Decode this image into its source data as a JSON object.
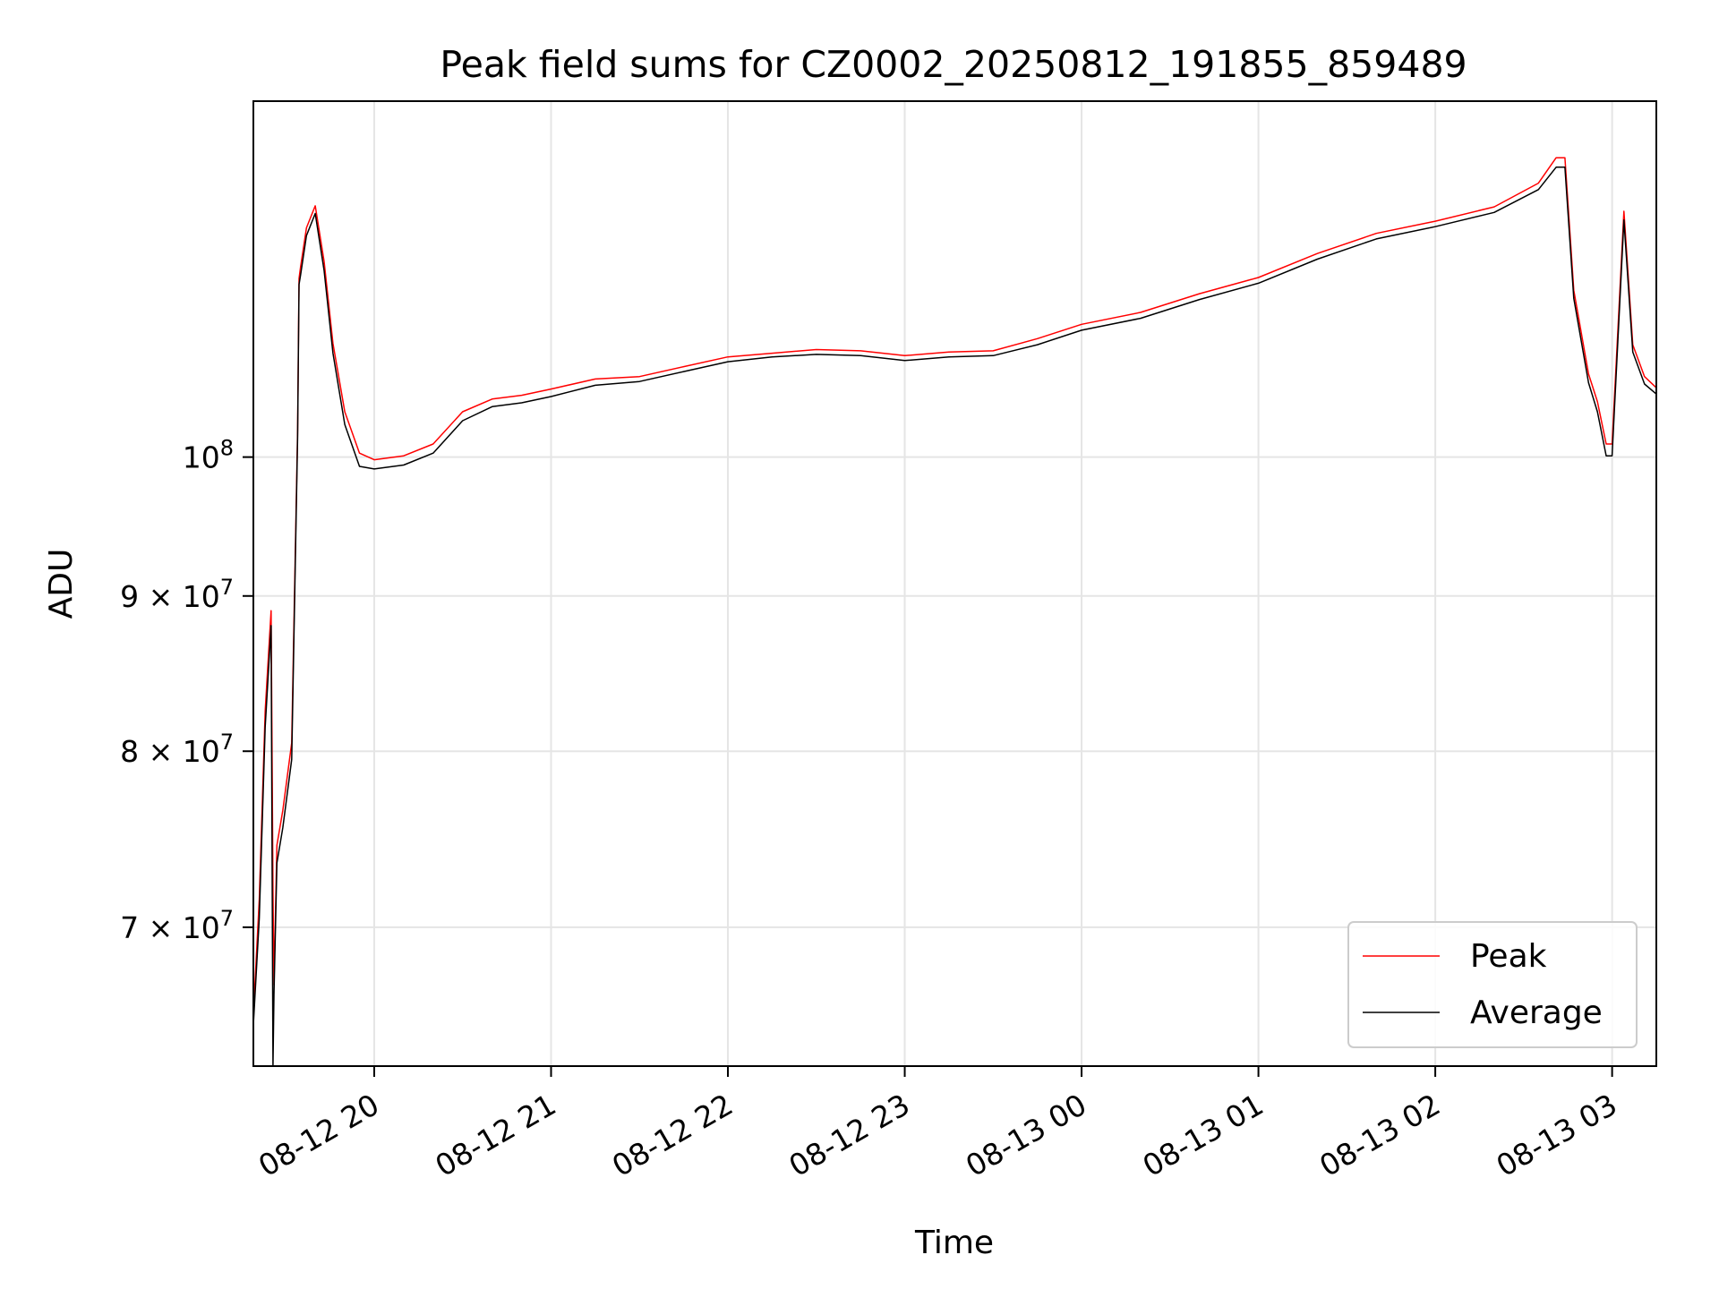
{
  "chart_data": {
    "type": "line",
    "title": "Peak field sums for CZ0002_20250812_191855_859489",
    "xlabel": "Time",
    "ylabel": "ADU",
    "y_scale": "log",
    "grid": true,
    "legend_placement": "lower-right",
    "xlim": [
      "2025-08-12 19:19",
      "2025-08-13 03:15"
    ],
    "ylim": [
      63000000,
      131000000
    ],
    "x_ticks": [
      "2025-08-12 20:00",
      "2025-08-12 21:00",
      "2025-08-12 22:00",
      "2025-08-12 23:00",
      "2025-08-13 00:00",
      "2025-08-13 01:00",
      "2025-08-13 02:00",
      "2025-08-13 03:00"
    ],
    "x_tick_labels": [
      "08-12 20",
      "08-12 21",
      "08-12 22",
      "08-12 23",
      "08-13 00",
      "08-13 01",
      "08-13 02",
      "08-13 03"
    ],
    "y_ticks": [
      {
        "value": 70000000,
        "mantissa": "7",
        "exponent": "7"
      },
      {
        "value": 80000000,
        "mantissa": "8",
        "exponent": "7"
      },
      {
        "value": 90000000,
        "mantissa": "9",
        "exponent": "7"
      },
      {
        "value": 100000000,
        "mantissa": "",
        "exponent": "8"
      }
    ],
    "y_tick_base": "10",
    "y_tick_times": "×",
    "series": [
      {
        "name": "Peak",
        "color": "#ff0000",
        "x": [
          "2025-08-12 19:19",
          "2025-08-12 19:21",
          "2025-08-12 19:23",
          "2025-08-12 19:25",
          "2025-08-12 19:25:40",
          "2025-08-12 19:26",
          "2025-08-12 19:27",
          "2025-08-12 19:29",
          "2025-08-12 19:32",
          "2025-08-12 19:34",
          "2025-08-12 19:34:30",
          "2025-08-12 19:35",
          "2025-08-12 19:37",
          "2025-08-12 19:40",
          "2025-08-12 19:43",
          "2025-08-12 19:46",
          "2025-08-12 19:50",
          "2025-08-12 19:55",
          "2025-08-12 20:00",
          "2025-08-12 20:10",
          "2025-08-12 20:20",
          "2025-08-12 20:30",
          "2025-08-12 20:40",
          "2025-08-12 20:50",
          "2025-08-12 21:00",
          "2025-08-12 21:15",
          "2025-08-12 21:30",
          "2025-08-12 21:45",
          "2025-08-12 22:00",
          "2025-08-12 22:15",
          "2025-08-12 22:30",
          "2025-08-12 22:45",
          "2025-08-12 23:00",
          "2025-08-12 23:15",
          "2025-08-12 23:30",
          "2025-08-12 23:45",
          "2025-08-13 00:00",
          "2025-08-13 00:20",
          "2025-08-13 00:40",
          "2025-08-13 01:00",
          "2025-08-13 01:20",
          "2025-08-13 01:40",
          "2025-08-13 02:00",
          "2025-08-13 02:20",
          "2025-08-13 02:35",
          "2025-08-13 02:41",
          "2025-08-13 02:44",
          "2025-08-13 02:47",
          "2025-08-13 02:52",
          "2025-08-13 02:55",
          "2025-08-13 02:58",
          "2025-08-13 03:00",
          "2025-08-13 03:04",
          "2025-08-13 03:07",
          "2025-08-13 03:11",
          "2025-08-13 03:15"
        ],
        "values": [
          65500000,
          71500000,
          82500000,
          89000000,
          72000000,
          67000000,
          74500000,
          76500000,
          80500000,
          102000000,
          114500000,
          115500000,
          119000000,
          121000000,
          116000000,
          109000000,
          103500000,
          100300000,
          99800000,
          100100000,
          101000000,
          103500000,
          104500000,
          104800000,
          105300000,
          106100000,
          106300000,
          107100000,
          107900000,
          108200000,
          108500000,
          108400000,
          108000000,
          108300000,
          108400000,
          109400000,
          110600000,
          111600000,
          113200000,
          114600000,
          116700000,
          118500000,
          119600000,
          120900000,
          123100000,
          125500000,
          125500000,
          113500000,
          106500000,
          104300000,
          101000000,
          101000000,
          120500000,
          108900000,
          106300000,
          105400000
        ]
      },
      {
        "name": "Average",
        "color": "#000000",
        "x": [
          "2025-08-12 19:19",
          "2025-08-12 19:21",
          "2025-08-12 19:23",
          "2025-08-12 19:25",
          "2025-08-12 19:25:40",
          "2025-08-12 19:26",
          "2025-08-12 19:27",
          "2025-08-12 19:29",
          "2025-08-12 19:32",
          "2025-08-12 19:34",
          "2025-08-12 19:34:30",
          "2025-08-12 19:35",
          "2025-08-12 19:37",
          "2025-08-12 19:40",
          "2025-08-12 19:43",
          "2025-08-12 19:46",
          "2025-08-12 19:50",
          "2025-08-12 19:55",
          "2025-08-12 20:00",
          "2025-08-12 20:10",
          "2025-08-12 20:20",
          "2025-08-12 20:30",
          "2025-08-12 20:40",
          "2025-08-12 20:50",
          "2025-08-12 21:00",
          "2025-08-12 21:15",
          "2025-08-12 21:30",
          "2025-08-12 21:45",
          "2025-08-12 22:00",
          "2025-08-12 22:15",
          "2025-08-12 22:30",
          "2025-08-12 22:45",
          "2025-08-12 23:00",
          "2025-08-12 23:15",
          "2025-08-12 23:30",
          "2025-08-12 23:45",
          "2025-08-13 00:00",
          "2025-08-13 00:20",
          "2025-08-13 00:40",
          "2025-08-13 01:00",
          "2025-08-13 01:20",
          "2025-08-13 01:40",
          "2025-08-13 02:00",
          "2025-08-13 02:20",
          "2025-08-13 02:35",
          "2025-08-13 02:41",
          "2025-08-13 02:44",
          "2025-08-13 02:47",
          "2025-08-13 02:52",
          "2025-08-13 02:55",
          "2025-08-13 02:58",
          "2025-08-13 03:00",
          "2025-08-13 03:04",
          "2025-08-13 03:07",
          "2025-08-13 03:11",
          "2025-08-13 03:15"
        ],
        "values": [
          65000000,
          70500000,
          81500000,
          88000000,
          63000000,
          66500000,
          73500000,
          75500000,
          79500000,
          101500000,
          114000000,
          114800000,
          118300000,
          120300000,
          115200000,
          108200000,
          102500000,
          99300000,
          99100000,
          99400000,
          100300000,
          102800000,
          103900000,
          104200000,
          104700000,
          105600000,
          105900000,
          106700000,
          107500000,
          107900000,
          108100000,
          108000000,
          107600000,
          107900000,
          108000000,
          108900000,
          110100000,
          111100000,
          112700000,
          114100000,
          116200000,
          118000000,
          119100000,
          120400000,
          122500000,
          124600000,
          124600000,
          112800000,
          105800000,
          103500000,
          100100000,
          100100000,
          119700000,
          108300000,
          105700000,
          104900000
        ]
      }
    ]
  }
}
